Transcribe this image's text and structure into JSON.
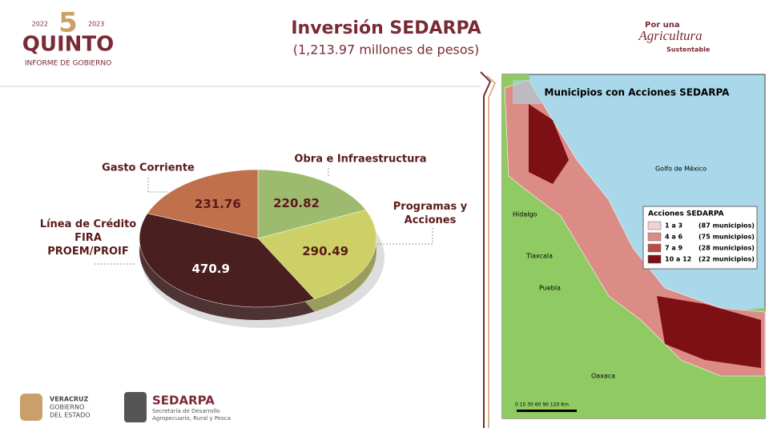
{
  "logo": {
    "numeral": "5",
    "years_left": "2022",
    "years_right": "2023",
    "name": "QUINTO",
    "caption": "INFORME DE GOBIERNO"
  },
  "title": "Inversión SEDARPA",
  "subtitle": "(1,213.97 millones de pesos)",
  "partner": {
    "line1": "Por una",
    "line2": "Agricultura",
    "line3": "Sustentable"
  },
  "chart_data": {
    "type": "pie",
    "categories": [
      "Obra e Infraestructura",
      "Programas y Acciones",
      "Línea de Crédito FIRA PROEM/PROIF",
      "Gasto Corriente"
    ],
    "values": [
      220.82,
      290.49,
      470.9,
      231.76
    ],
    "colors": [
      "#9dbb6e",
      "#cdd066",
      "#4a1f1f",
      "#c0714b"
    ]
  },
  "map": {
    "title": "Municipios con Acciones SEDARPA",
    "sea": "Golfo de México",
    "states": [
      "Hidalgo",
      "Tlaxcala",
      "Puebla",
      "Oaxaca"
    ],
    "legend_title": "Acciones SEDARPA",
    "legend": [
      {
        "range": "1 a 3",
        "count": "(87 municipios)",
        "color": "#f4cfd0"
      },
      {
        "range": "4 a 6",
        "count": "(75 municipios)",
        "color": "#dc8c86"
      },
      {
        "range": "7 a 9",
        "count": "(28 municipios)",
        "color": "#b94c44"
      },
      {
        "range": "10 a 12",
        "count": "(22 municipios)",
        "color": "#7c1015"
      }
    ],
    "scale": "0 15 30   60   90  120 Km"
  },
  "footer": {
    "state": [
      "VERACRUZ",
      "GOBIERNO",
      "DEL ESTADO"
    ],
    "agency": "SEDARPA",
    "agency_lines": [
      "Secretaría de Desarrollo",
      "Agropecuario, Rural y Pesca"
    ]
  }
}
